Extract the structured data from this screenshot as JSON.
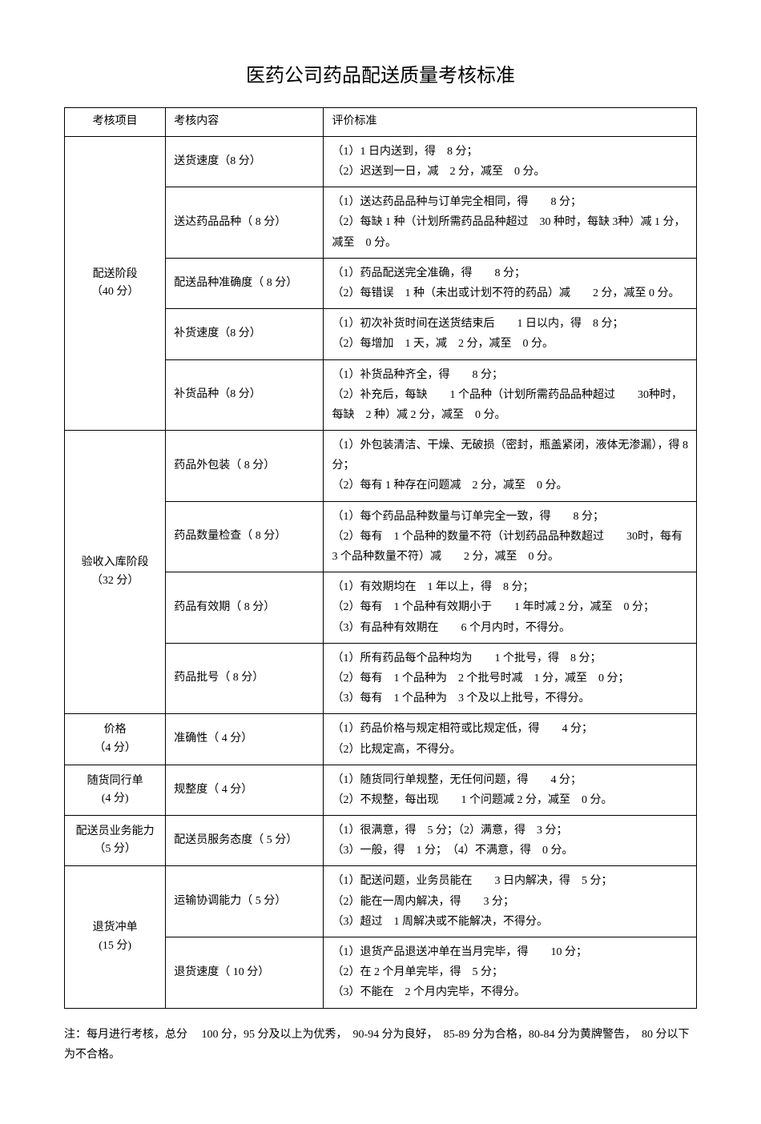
{
  "title": "医药公司药品配送质量考核标准",
  "headers": {
    "category": "考核项目",
    "content": "考核内容",
    "criteria": "评价标准"
  },
  "sections": [
    {
      "category": "配送阶段\n（40 分）",
      "rows": [
        {
          "content": "送货速度（8 分）",
          "criteria": "（1）1 日内送到，得　8 分；\n（2）迟送到一日，减　2 分，减至　0 分。"
        },
        {
          "content": "送达药品品种（ 8 分）",
          "criteria": "（1）送达药品品种与订单完全相同，得　　8 分；\n（2）每缺 1 种（计划所需药品品种超过　30 种时，每缺 3种）减 1 分，减至　0 分。"
        },
        {
          "content": "配送品种准确度（ 8 分）",
          "criteria": "（1）药品配送完全准确，得　　8 分；\n（2）每错误　1 种（未出或计划不符的药品）减　　2 分，减至 0 分。"
        },
        {
          "content": "补货速度（8 分）",
          "criteria": "（1）初次补货时间在送货结束后　　1 日以内，得　8 分；\n（2）每增加　1 天，减　2 分，减至　0 分。"
        },
        {
          "content": "补货品种（8 分）",
          "criteria": "（1）补货品种齐全，得　　8 分；\n（2）补充后，每缺　　1 个品种（计划所需药品品种超过　　30种时，每缺　2 种）减 2 分，减至　0 分。"
        }
      ]
    },
    {
      "category": "验收入库阶段\n（32 分）",
      "rows": [
        {
          "content": "药品外包装（ 8 分）",
          "criteria": "（1）外包装清洁、干燥、无破损（密封，瓶盖紧闭，液体无渗漏），得 8 分；\n（2）每有 1 种存在问题减　2 分，减至　0 分。"
        },
        {
          "content": "药品数量检查（ 8 分）",
          "criteria": "（1）每个药品品种数量与订单完全一致，得　　8 分；\n（2）每有　1 个品种的数量不符（计划药品品种数超过　　30时，每有　3 个品种数量不符）减　　2 分，减至　0 分。"
        },
        {
          "content": "药品有效期（ 8 分）",
          "criteria": "（1）有效期均在　1 年以上，得　8 分；\n（2）每有　1 个品种有效期小于　　1 年时减 2 分，减至　0 分；\n（3）有品种有效期在　　6 个月内时，不得分。"
        },
        {
          "content": "药品批号（ 8 分）",
          "criteria": "（1）所有药品每个品种均为　　1 个批号，得　8 分；\n（2）每有　1 个品种为　2 个批号时减　1 分，减至　0 分；\n（3）每有　1 个品种为　3 个及以上批号，不得分。"
        }
      ]
    },
    {
      "category": "价格\n（4 分）",
      "rows": [
        {
          "content": "准确性（ 4 分）",
          "criteria": "（1）药品价格与规定相符或比规定低，得　　4 分；\n（2）比规定高，不得分。"
        }
      ]
    },
    {
      "category": "随货同行单\n(4 分)",
      "rows": [
        {
          "content": "规整度（ 4 分）",
          "criteria": "（1）随货同行单规整，无任何问题，得　　4 分；\n（2）不规整，每出现　　1 个问题减 2 分，减至　0 分。"
        }
      ]
    },
    {
      "category": "配送员业务能力\n（5 分）",
      "rows": [
        {
          "content": "配送员服务态度（ 5 分）",
          "criteria": "（1）很满意，得　5 分；（2）满意，得　3 分；\n（3）一般，得　1 分；　（4）不满意，得　0 分。"
        }
      ]
    },
    {
      "category": "退货冲单\n(15 分)",
      "rows": [
        {
          "content": "运输协调能力（ 5 分）",
          "criteria": "（1）配送问题，业务员能在　　3 日内解决，得　5 分；\n（2）能在一周内解决，得　　3 分；\n（3）超过　1 周解决或不能解决，不得分。"
        },
        {
          "content": "退货速度（ 10 分）",
          "criteria": "（1）退货产品退送冲单在当月完毕，得　　10 分；\n（2）在 2 个月单完毕，得　5 分；\n（3）不能在　2 个月内完毕，不得分。"
        }
      ]
    }
  ],
  "note": "注：每月进行考核，总分　 100 分，95 分及以上为优秀，　90-94 分为良好，　85-89 分为合格，80-84 分为黄牌警告，　80 分以下为不合格。"
}
